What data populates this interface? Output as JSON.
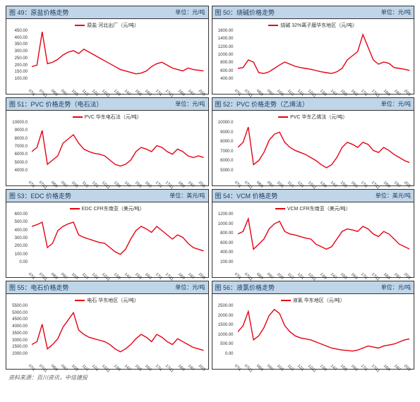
{
  "xlabels": [
    "07/1",
    "07/11",
    "08/9",
    "09/7",
    "10/5",
    "11/3",
    "12/1",
    "12/11",
    "13/9",
    "14/7",
    "15/5",
    "16/3",
    "17/1",
    "17/11",
    "18/9",
    "19/7",
    "20/5"
  ],
  "line_color": "#e60012",
  "line_width": 1.4,
  "bg_color": "#ffffff",
  "header_bg": "#c0d5e8",
  "header_text_color": "#1a3a5c",
  "source_text": "资料来源：百川资讯，中信建投",
  "charts": [
    {
      "id": "c49",
      "title": "图 49：原盐价格走势",
      "unit": "单位：元/吨",
      "legend": "原盐 河北出厂（元/吨）",
      "yticks": [
        "450.00",
        "400.00",
        "350.00",
        "300.00",
        "250.00",
        "200.00",
        "150.00",
        "100.00"
      ],
      "ymin": 100,
      "ymax": 450,
      "values": [
        200,
        210,
        440,
        220,
        230,
        250,
        280,
        300,
        310,
        290,
        320,
        300,
        280,
        260,
        240,
        220,
        200,
        180,
        170,
        160,
        150,
        155,
        170,
        200,
        220,
        230,
        210,
        190,
        180,
        170,
        190,
        180,
        175,
        170
      ]
    },
    {
      "id": "c50",
      "title": "图 50：烧碱价格走势",
      "unit": "单位：元/吨",
      "legend": "烧碱 32%离子膜华东地区（元/吨）",
      "yticks": [
        "1600.00",
        "1400.00",
        "1200.00",
        "1000.00",
        "800.00",
        "600.00",
        "400.00"
      ],
      "ymin": 400,
      "ymax": 1600,
      "values": [
        700,
        720,
        900,
        850,
        600,
        580,
        620,
        700,
        780,
        850,
        800,
        750,
        720,
        700,
        680,
        650,
        620,
        600,
        580,
        620,
        700,
        900,
        1000,
        1100,
        1500,
        1200,
        900,
        800,
        850,
        820,
        720,
        700,
        680,
        650
      ]
    },
    {
      "id": "c51",
      "title": "图 51：PVC 价格走势（电石法）",
      "unit": "单位：元/吨",
      "legend": "PVC 华东电石法（元/吨）",
      "yticks": [
        "10000.0",
        "9000.0",
        "8000.0",
        "7000.0",
        "6000.0",
        "5000.0",
        "4000.0"
      ],
      "ymin": 4000,
      "ymax": 10000,
      "values": [
        6500,
        7000,
        9000,
        5000,
        5500,
        6000,
        7500,
        8000,
        8500,
        7500,
        6800,
        6500,
        6300,
        6200,
        6000,
        5500,
        5000,
        4800,
        5000,
        5500,
        6500,
        7000,
        6800,
        6500,
        7200,
        7000,
        6500,
        6200,
        6800,
        6500,
        6000,
        5800,
        6000,
        5800
      ]
    },
    {
      "id": "c52",
      "title": "图 52：PVC 价格走势（乙烯法）",
      "unit": "单位：元/吨",
      "legend": "PVC 华东乙烯法（元/吨）",
      "yticks": [
        "10000.0",
        "9000.0",
        "8000.0",
        "7000.0",
        "6000.0",
        "5000.0"
      ],
      "ymin": 5000,
      "ymax": 10000,
      "values": [
        7500,
        8000,
        9500,
        5800,
        6200,
        7000,
        8200,
        8800,
        9000,
        8000,
        7500,
        7200,
        7000,
        6800,
        6500,
        6200,
        5800,
        5500,
        5800,
        6500,
        7500,
        8000,
        7800,
        7500,
        8000,
        7800,
        7200,
        7000,
        7500,
        7200,
        6800,
        6500,
        6200,
        6000
      ]
    },
    {
      "id": "c53",
      "title": "图 53：EDC 价格走势",
      "unit": "单位：美元/吨",
      "legend": "EDC CFR东南亚（美元/吨）",
      "yticks": [
        "600.00",
        "500.00",
        "400.00",
        "300.00",
        "200.00",
        "100.00",
        "0.00"
      ],
      "ymin": 0,
      "ymax": 600,
      "values": [
        450,
        470,
        500,
        200,
        250,
        400,
        450,
        480,
        500,
        350,
        320,
        300,
        280,
        260,
        250,
        200,
        150,
        120,
        180,
        300,
        400,
        450,
        420,
        380,
        450,
        400,
        350,
        300,
        350,
        320,
        250,
        200,
        180,
        160
      ]
    },
    {
      "id": "c54",
      "title": "图 54：VCM 价格走势",
      "unit": "单位：美元/吨",
      "legend": "VCM CFR东南亚（美元/吨）",
      "yticks": [
        "1200.00",
        "1000.00",
        "800.00",
        "600.00",
        "400.00",
        "200.00"
      ],
      "ymin": 200,
      "ymax": 1200,
      "values": [
        800,
        850,
        1100,
        500,
        600,
        700,
        900,
        1000,
        1050,
        850,
        800,
        780,
        750,
        720,
        700,
        600,
        550,
        500,
        550,
        700,
        850,
        900,
        880,
        850,
        950,
        900,
        800,
        750,
        850,
        800,
        700,
        600,
        550,
        500
      ]
    },
    {
      "id": "c55",
      "title": "图 55：电石价格走势",
      "unit": "单位：元/吨",
      "legend": "电石 华东地区（元/吨）",
      "yticks": [
        "5500.00",
        "5000.00",
        "4500.00",
        "4000.00",
        "3500.00",
        "3000.00",
        "2500.00",
        "2000.00"
      ],
      "ymin": 2000,
      "ymax": 5500,
      "values": [
        2800,
        3000,
        4200,
        2500,
        2800,
        3200,
        4000,
        4500,
        5000,
        3800,
        3500,
        3300,
        3200,
        3100,
        3000,
        2800,
        2500,
        2300,
        2500,
        2800,
        3200,
        3500,
        3300,
        3000,
        3500,
        3300,
        3000,
        2800,
        3200,
        3000,
        2800,
        2600,
        2500,
        2400
      ]
    },
    {
      "id": "c56",
      "title": "图 56：液氯价格走势",
      "unit": "单位：元/吨",
      "legend": "液氯 华东地区（元/吨）",
      "yticks": [
        "2500.00",
        "2000.00",
        "1500.00",
        "1000.00",
        "500.00",
        "0.00"
      ],
      "ymin": 0,
      "ymax": 2500,
      "values": [
        1200,
        1500,
        2200,
        800,
        1000,
        1400,
        2000,
        2300,
        2100,
        1500,
        1200,
        1000,
        900,
        850,
        800,
        700,
        600,
        500,
        400,
        350,
        300,
        280,
        250,
        300,
        400,
        500,
        450,
        400,
        500,
        550,
        600,
        700,
        800,
        850
      ]
    }
  ]
}
